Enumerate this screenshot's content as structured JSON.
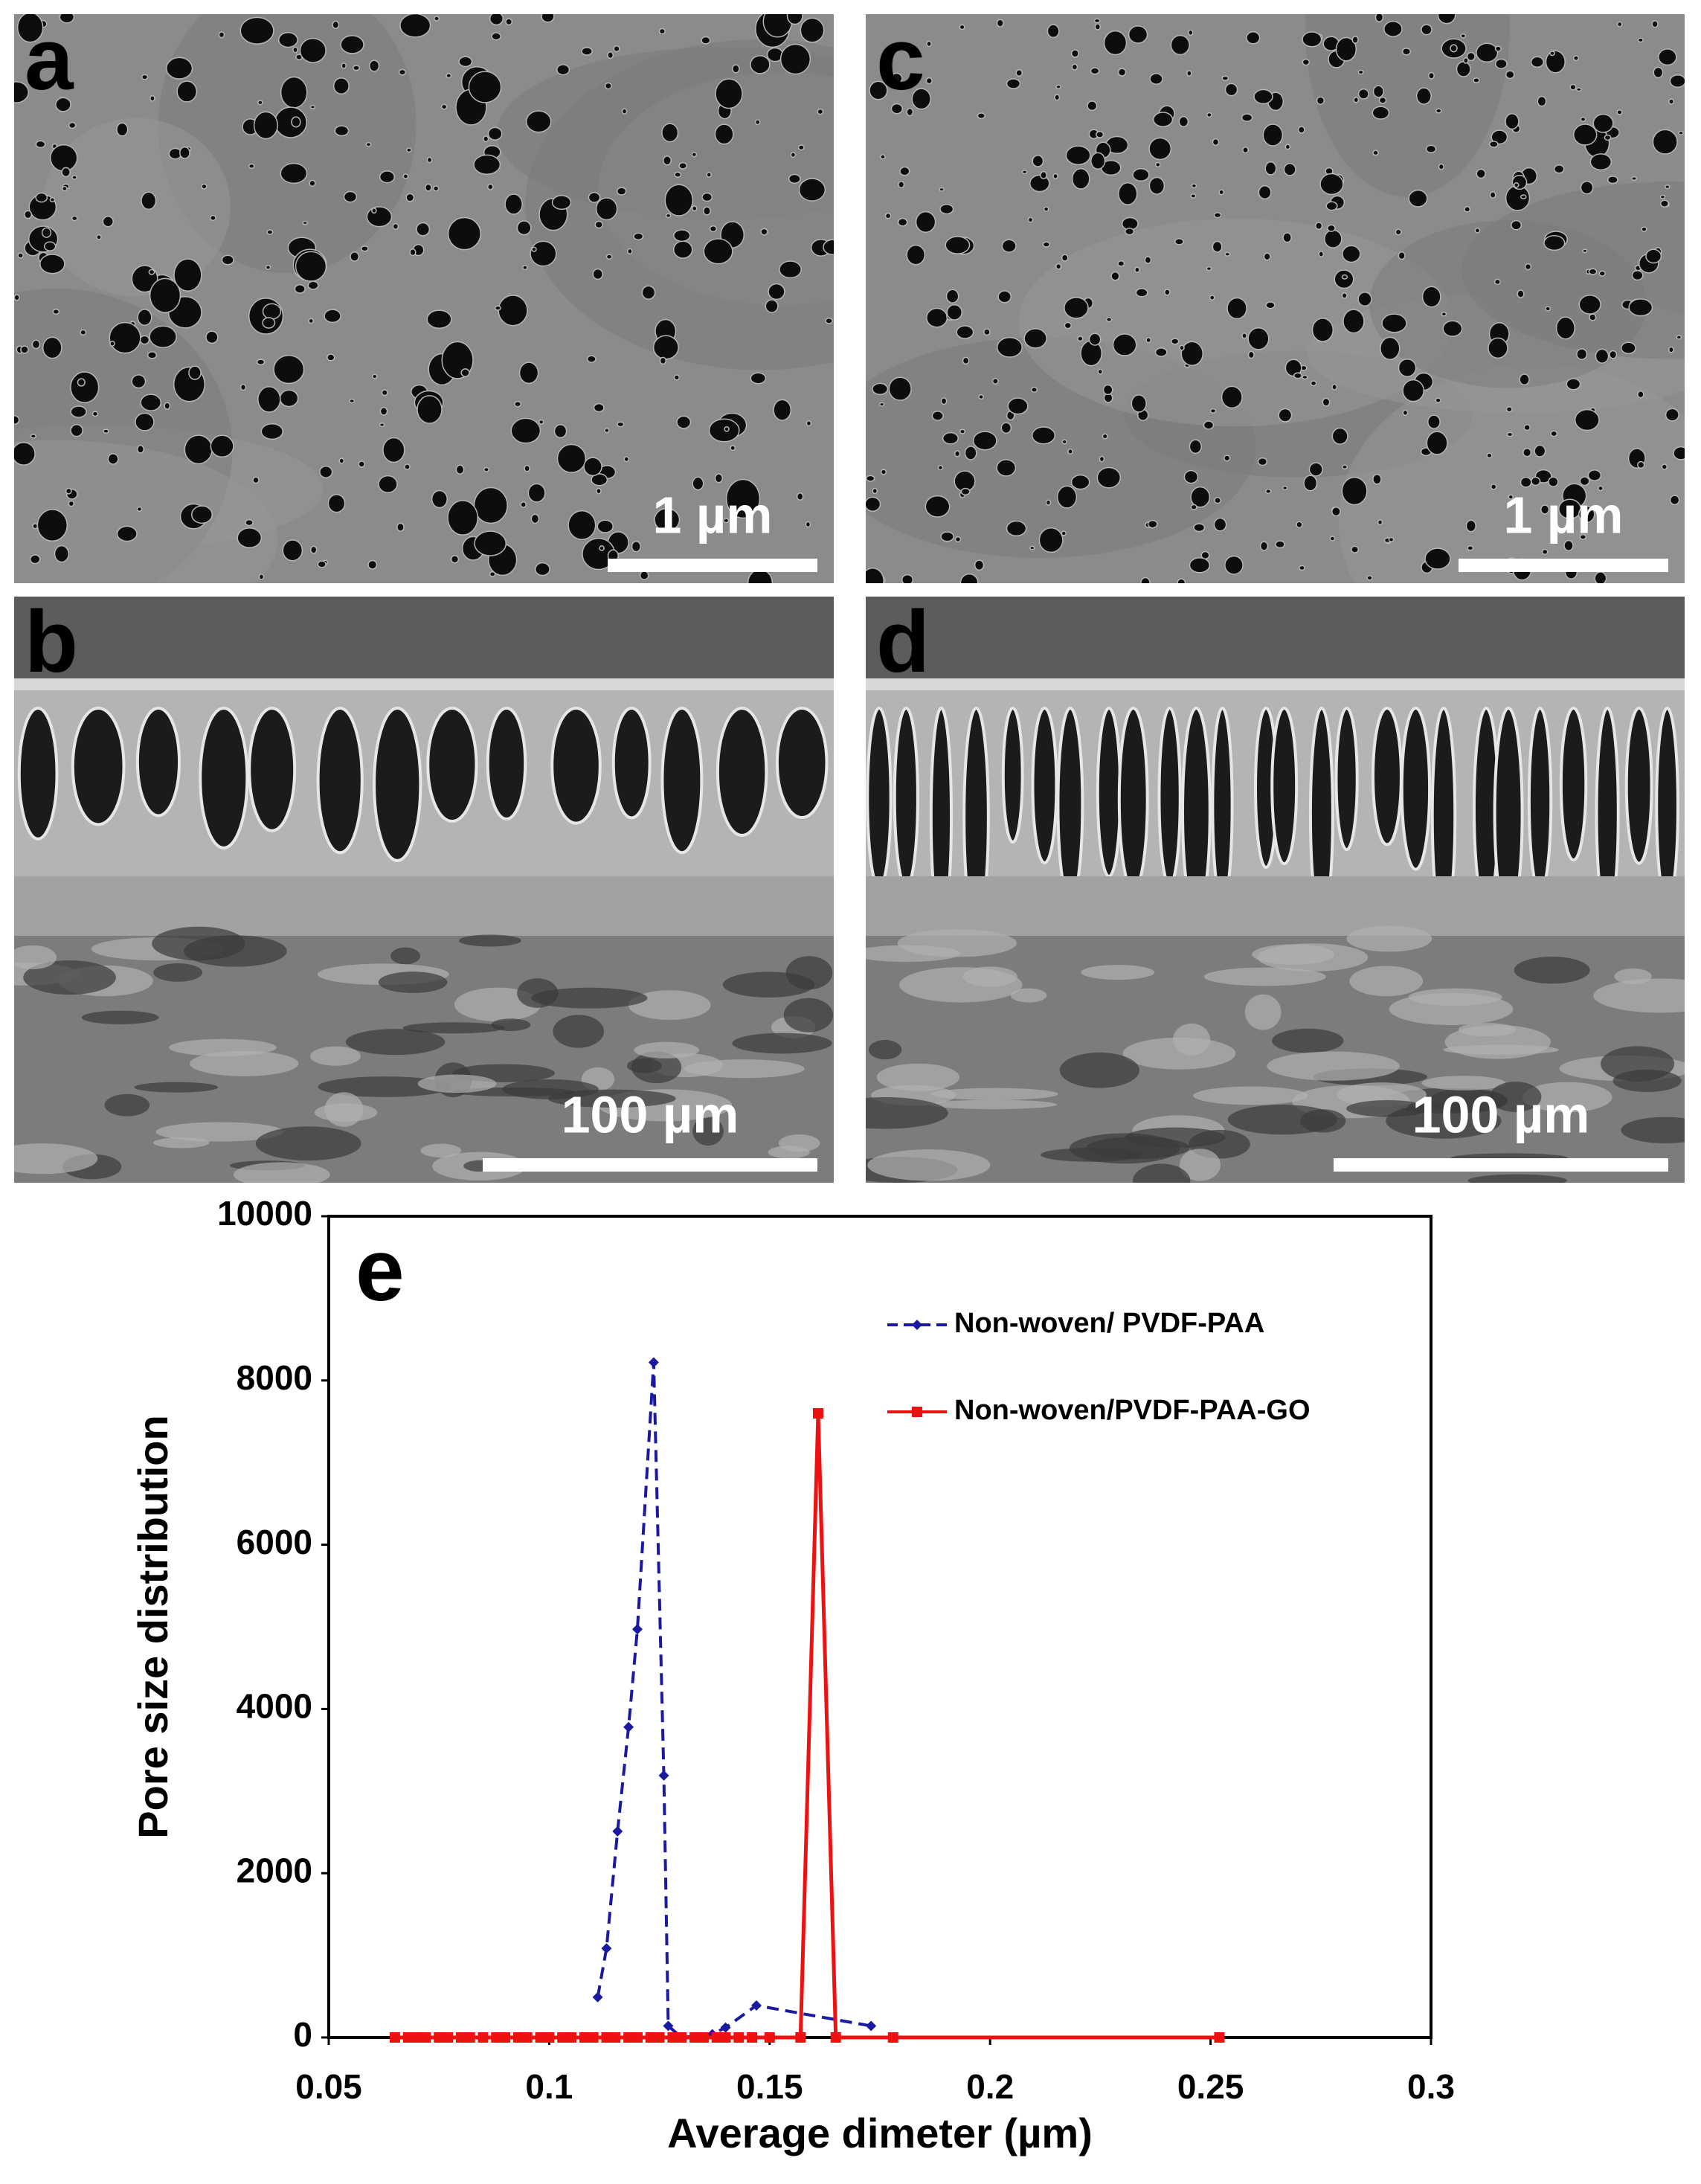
{
  "panels": [
    {
      "label": "a",
      "scale_bar": "1 µm"
    },
    {
      "label": "b",
      "scale_bar": "100 µm"
    },
    {
      "label": "c",
      "scale_bar": "1 µm"
    },
    {
      "label": "d",
      "scale_bar": "100 µm"
    }
  ],
  "chart_data": {
    "type": "line",
    "panel_label": "e",
    "x_label": "Average dimeter (µm)",
    "y_label": "Pore size distribution",
    "xlim": [
      0.05,
      0.3
    ],
    "xticks": [
      0.05,
      0.1,
      0.15,
      0.2,
      0.25,
      0.3
    ],
    "ylim": [
      0,
      10000
    ],
    "yticks": [
      0,
      2000,
      4000,
      6000,
      8000,
      10000
    ],
    "grid": false,
    "legend": "upper right",
    "series": [
      {
        "name": "Non-woven/ PVDF-PAA",
        "color": "#1a1aa0",
        "dash": true,
        "marker": "diamond",
        "x": [
          0.111,
          0.113,
          0.1155,
          0.118,
          0.12,
          0.1237,
          0.126,
          0.127,
          0.13,
          0.137,
          0.14,
          0.147,
          0.173
        ],
        "values": [
          490,
          1085,
          2510,
          3780,
          4970,
          8220,
          3190,
          140,
          0,
          40,
          120,
          390,
          140
        ]
      },
      {
        "name": "Non-woven/PVDF-PAA-GO",
        "color": "#ee1111",
        "dash": false,
        "marker": "square",
        "x": [
          0.065,
          0.068,
          0.07,
          0.072,
          0.075,
          0.077,
          0.08,
          0.082,
          0.085,
          0.088,
          0.09,
          0.093,
          0.095,
          0.098,
          0.1,
          0.103,
          0.105,
          0.108,
          0.11,
          0.113,
          0.115,
          0.118,
          0.12,
          0.123,
          0.125,
          0.128,
          0.13,
          0.133,
          0.135,
          0.138,
          0.14,
          0.143,
          0.146,
          0.15,
          0.157,
          0.161,
          0.165,
          0.178,
          0.252
        ],
        "values": [
          0,
          0,
          0,
          0,
          0,
          0,
          0,
          0,
          0,
          0,
          0,
          0,
          0,
          0,
          0,
          0,
          0,
          0,
          0,
          0,
          0,
          0,
          0,
          0,
          0,
          0,
          0,
          0,
          0,
          0,
          0,
          0,
          0,
          0,
          0,
          7600,
          0,
          0,
          0
        ]
      }
    ]
  }
}
